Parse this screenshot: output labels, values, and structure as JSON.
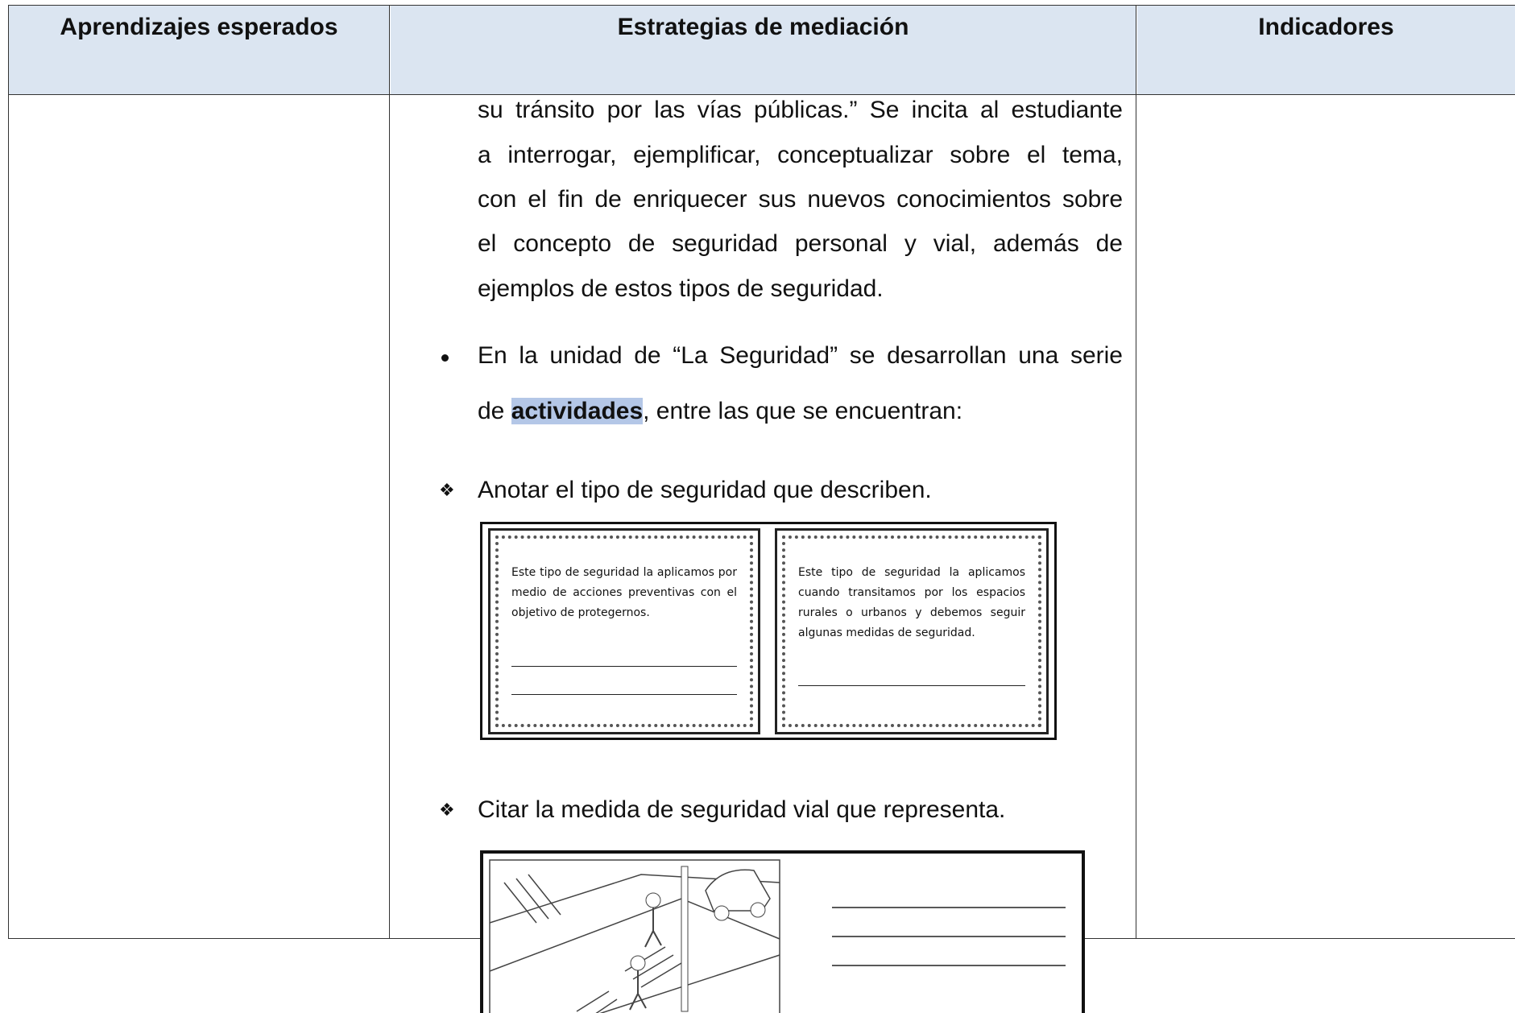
{
  "table": {
    "headers": [
      "Aprendizajes esperados",
      "Estrategias de mediación",
      "Indicadores"
    ],
    "paragraph_lines": [
      "su tránsito por las vías públicas.” Se incita al estudiante",
      "a interrogar, ejemplificar, conceptualizar sobre el tema,",
      "con el fin de enriquecer sus nuevos conocimientos sobre",
      "el concepto de seguridad personal y vial, además de",
      "ejemplos de estos tipos de seguridad."
    ],
    "bullet": {
      "line1": "En la unidad de “La Seguridad” se desarrollan una serie",
      "line2_start": "de ",
      "line2_highlight": "actividades",
      "line2_end": ", entre las que se encuentran:"
    },
    "activities": [
      {
        "label": "Anotar el tipo de seguridad que describen.",
        "cards": [
          "Este tipo de seguridad la aplicamos por medio de acciones preventivas con el objetivo de protegernos.",
          "Este tipo de seguridad la aplicamos cuando transitamos por los espacios rurales o urbanos y debemos seguir algunas medidas de seguridad."
        ]
      },
      {
        "label": "Citar la medida de seguridad vial que representa."
      }
    ]
  }
}
